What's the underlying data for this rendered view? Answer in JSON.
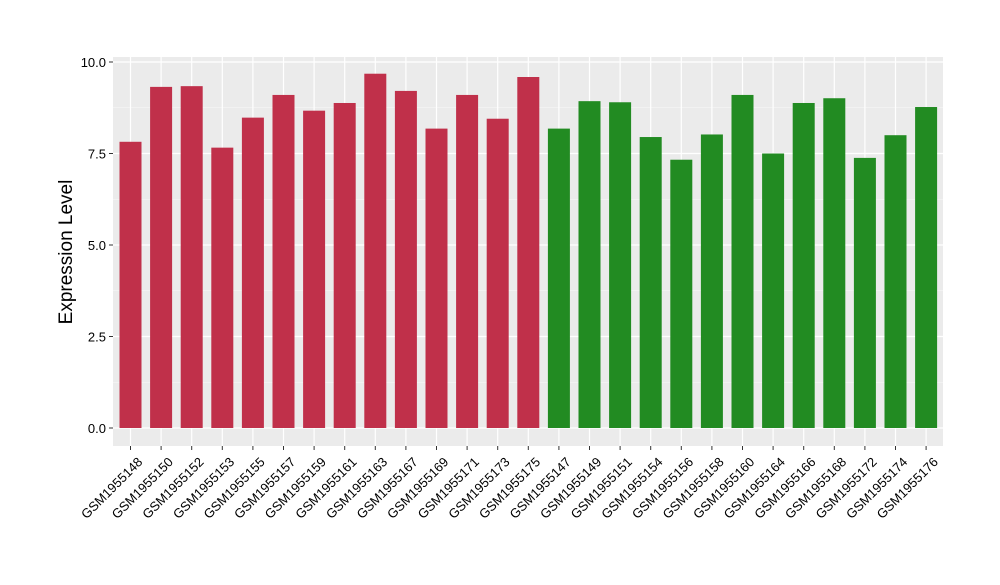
{
  "chart_data": {
    "type": "bar",
    "title": "",
    "xlabel": "",
    "ylabel": "Expression Level",
    "ylim": [
      0,
      10.2
    ],
    "yticks": [
      0.0,
      2.5,
      5.0,
      7.5,
      10.0
    ],
    "ytick_labels": [
      "0.0",
      "2.5",
      "5.0",
      "7.5",
      "10.0"
    ],
    "grid": true,
    "legend": "none",
    "colors": {
      "panel_bg": "#ebebeb",
      "grid": "#ffffff",
      "group1": "#c0304a",
      "group2": "#228b22",
      "axis_text": "#000000"
    },
    "categories": [
      "GSM1955148",
      "GSM1955150",
      "GSM1955152",
      "GSM1955153",
      "GSM1955155",
      "GSM1955157",
      "GSM1955159",
      "GSM1955161",
      "GSM1955163",
      "GSM1955167",
      "GSM1955169",
      "GSM1955171",
      "GSM1955173",
      "GSM1955175",
      "GSM1955147",
      "GSM1955149",
      "GSM1955151",
      "GSM1955154",
      "GSM1955156",
      "GSM1955158",
      "GSM1955160",
      "GSM1955164",
      "GSM1955166",
      "GSM1955168",
      "GSM1955172",
      "GSM1955174",
      "GSM1955176"
    ],
    "values": [
      7.82,
      9.32,
      9.34,
      7.66,
      8.48,
      9.1,
      8.67,
      8.88,
      9.68,
      9.21,
      8.18,
      9.1,
      8.45,
      9.59,
      8.18,
      8.93,
      8.9,
      7.95,
      7.33,
      8.02,
      9.1,
      7.5,
      8.88,
      9.01,
      7.38,
      8.0,
      8.77
    ],
    "groups": [
      1,
      1,
      1,
      1,
      1,
      1,
      1,
      1,
      1,
      1,
      1,
      1,
      1,
      1,
      2,
      2,
      2,
      2,
      2,
      2,
      2,
      2,
      2,
      2,
      2,
      2,
      2
    ]
  }
}
